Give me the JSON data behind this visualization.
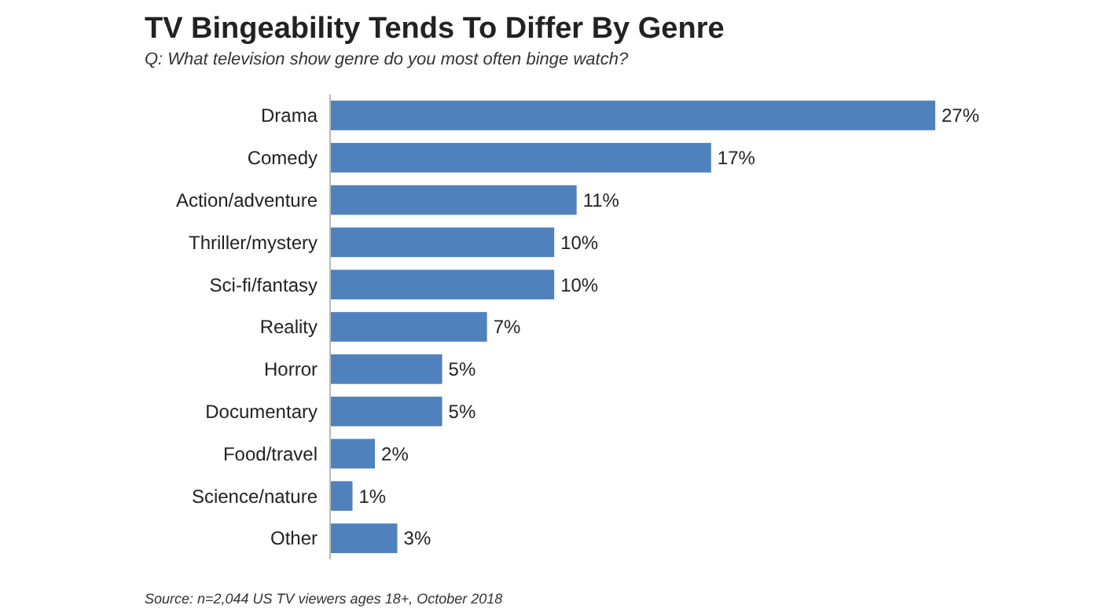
{
  "chart_data": {
    "type": "bar",
    "orientation": "horizontal",
    "title": "TV Bingeability Tends To Differ By Genre",
    "subtitle": "Q: What television show genre do you most often binge watch?",
    "categories": [
      "Drama",
      "Comedy",
      "Action/adventure",
      "Thriller/mystery",
      "Sci-fi/fantasy",
      "Reality",
      "Horror",
      "Documentary",
      "Food/travel",
      "Science/nature",
      "Other"
    ],
    "values": [
      27,
      17,
      11,
      10,
      10,
      7,
      5,
      5,
      2,
      1,
      3
    ],
    "value_labels": [
      "27%",
      "17%",
      "11%",
      "10%",
      "10%",
      "7%",
      "5%",
      "5%",
      "2%",
      "1%",
      "3%"
    ],
    "color": "#4f81bd",
    "xlim": [
      0,
      27
    ],
    "annotations": [
      "Source: n=2,044 US TV viewers ages 18+, October 2018"
    ]
  }
}
